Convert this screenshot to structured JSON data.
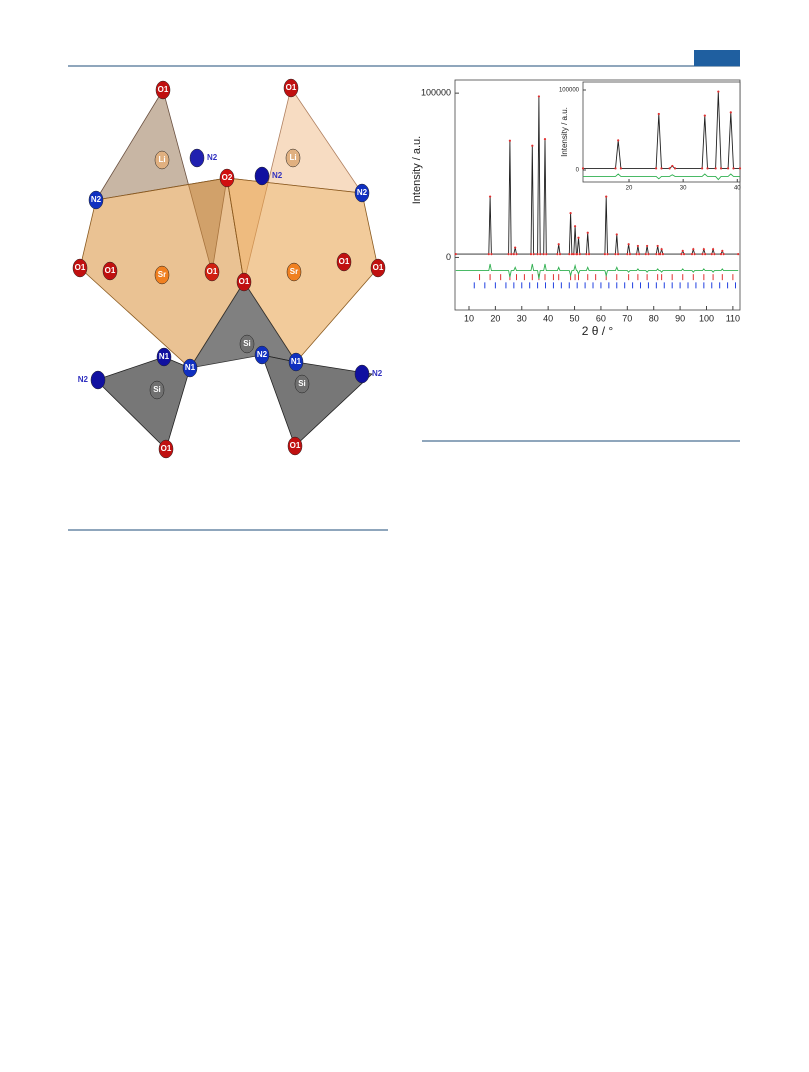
{
  "structure": {
    "atom_labels": [
      "O1",
      "O1",
      "Li",
      "Li",
      "N2",
      "O2",
      "N2",
      "N2",
      "N2",
      "O1",
      "O1",
      "Sr",
      "O1",
      "O1",
      "Sr",
      "O1",
      "O1",
      "Si",
      "N1",
      "N1",
      "N2",
      "N1",
      "N2",
      "Si",
      "Si",
      "N2",
      "O1",
      "O1"
    ]
  },
  "chart_data": [
    {
      "type": "line",
      "ylabel": "Intensity / a.u.",
      "xlabel": "2 θ / °",
      "xlim": [
        4.7,
        112.7
      ],
      "ylim": [
        -32000,
        108000
      ],
      "xticks": [
        10,
        20,
        30,
        40,
        50,
        60,
        70,
        80,
        90,
        100,
        110
      ],
      "yticks": [
        0,
        100000
      ],
      "x": [
        5,
        17.5,
        18,
        18.5,
        25,
        25.5,
        26,
        27,
        27.5,
        28,
        33.5,
        34,
        34.5,
        36,
        36.5,
        37,
        38.3,
        38.8,
        39.3,
        43.5,
        44,
        44.5,
        48,
        48.5,
        49,
        49.7,
        50.2,
        50.7,
        51,
        51.5,
        52,
        54.5,
        55,
        55.5,
        61.5,
        62,
        62.5,
        65.5,
        66,
        66.5,
        70,
        70.5,
        71,
        73.5,
        74,
        74.5,
        77,
        77.5,
        78,
        81,
        81.5,
        82,
        82.5,
        83,
        83.5,
        90.5,
        91,
        91.5,
        94.5,
        95,
        95.5,
        98.5,
        99,
        99.5,
        102,
        102.5,
        103,
        105.5,
        106,
        106.5,
        112
      ],
      "series": [
        {
          "color": "#222222",
          "marker_color": "#e03030",
          "values": [
            2000,
            2000,
            37000,
            2000,
            2000,
            71000,
            2000,
            2000,
            6000,
            2000,
            2000,
            68000,
            2000,
            2000,
            98000,
            2000,
            2000,
            72000,
            2000,
            2000,
            8000,
            2000,
            2000,
            27000,
            2000,
            2000,
            19000,
            2000,
            2000,
            12000,
            2000,
            2000,
            15000,
            2000,
            2000,
            37000,
            2000,
            2000,
            14000,
            2000,
            2000,
            8000,
            2000,
            2000,
            7000,
            2000,
            2000,
            7000,
            2000,
            2000,
            7000,
            2000,
            2000,
            5000,
            2000,
            2000,
            4000,
            2000,
            2000,
            5000,
            2000,
            2000,
            5000,
            2000,
            2000,
            5000,
            2000,
            2000,
            4000,
            2000,
            2000
          ]
        },
        {
          "color": "#30b050",
          "values": [
            -8000,
            -8000,
            -4000,
            -8000,
            -8000,
            -12000,
            -8000,
            -8000,
            -6000,
            -8000,
            -8000,
            -4000,
            -8000,
            -8000,
            -13000,
            -8000,
            -8000,
            -4000,
            -8000,
            -8000,
            -6000,
            -8000,
            -8000,
            -11000,
            -8000,
            -8000,
            -5000,
            -8000,
            -8000,
            -10000,
            -8000,
            -8000,
            -6000,
            -8000,
            -8000,
            -11000,
            -8000,
            -8000,
            -6000,
            -8000,
            -8000,
            -9000,
            -8000,
            -8000,
            -7000,
            -8000,
            -8000,
            -9000,
            -8000,
            -8000,
            -7000,
            -8000,
            -8000,
            -9000,
            -8000,
            -8000,
            -7000,
            -8000,
            -8000,
            -9000,
            -8000,
            -8000,
            -7000,
            -8000,
            -8000,
            -9000,
            -8000,
            -8000,
            -7000,
            -8000,
            -8000
          ]
        }
      ],
      "tick_rows": [
        {
          "color": "#e03030",
          "y": -12000,
          "x": [
            14,
            18,
            22,
            25.5,
            28,
            31,
            34,
            36.5,
            38.8,
            42,
            44,
            48.5,
            50.2,
            51.5,
            55,
            58,
            62,
            66,
            70.5,
            74,
            77.5,
            81.5,
            83,
            87,
            91,
            95,
            99,
            102.5,
            106,
            110
          ]
        },
        {
          "color": "#2040e0",
          "y": -17000,
          "x": [
            12,
            16,
            20,
            24,
            27,
            30,
            33,
            36,
            39,
            42,
            45,
            48,
            51,
            54,
            57,
            60,
            63,
            66,
            69,
            72,
            75,
            78,
            81,
            84,
            87,
            90,
            93,
            96,
            99,
            102,
            105,
            108,
            111
          ]
        }
      ]
    },
    {
      "type": "line",
      "ylabel": "Intensity / a.u.",
      "xlim": [
        11.5,
        40.5
      ],
      "ylim": [
        -15000,
        110000
      ],
      "xticks": [
        20,
        30,
        40
      ],
      "yticks": [
        0,
        100000
      ],
      "x": [
        11.5,
        17.5,
        18,
        18.5,
        25,
        25.5,
        26,
        27.5,
        28,
        28.5,
        33.5,
        34,
        34.5,
        36,
        36.5,
        37,
        38.3,
        38.8,
        39.3,
        40.5
      ],
      "series": [
        {
          "color": "#222222",
          "marker_color": "#e03030",
          "values": [
            2000,
            2000,
            37000,
            2000,
            2000,
            70000,
            2000,
            2000,
            5000,
            2000,
            2000,
            68000,
            2000,
            2000,
            98000,
            2000,
            2000,
            72000,
            2000,
            2000
          ]
        },
        {
          "color": "#30b050",
          "values": [
            -8000,
            -8000,
            -5000,
            -8000,
            -8000,
            -11000,
            -8000,
            -8000,
            -6000,
            -8000,
            -8000,
            -5000,
            -8000,
            -8000,
            -12000,
            -8000,
            -8000,
            -5000,
            -8000,
            -8000
          ]
        }
      ]
    }
  ]
}
